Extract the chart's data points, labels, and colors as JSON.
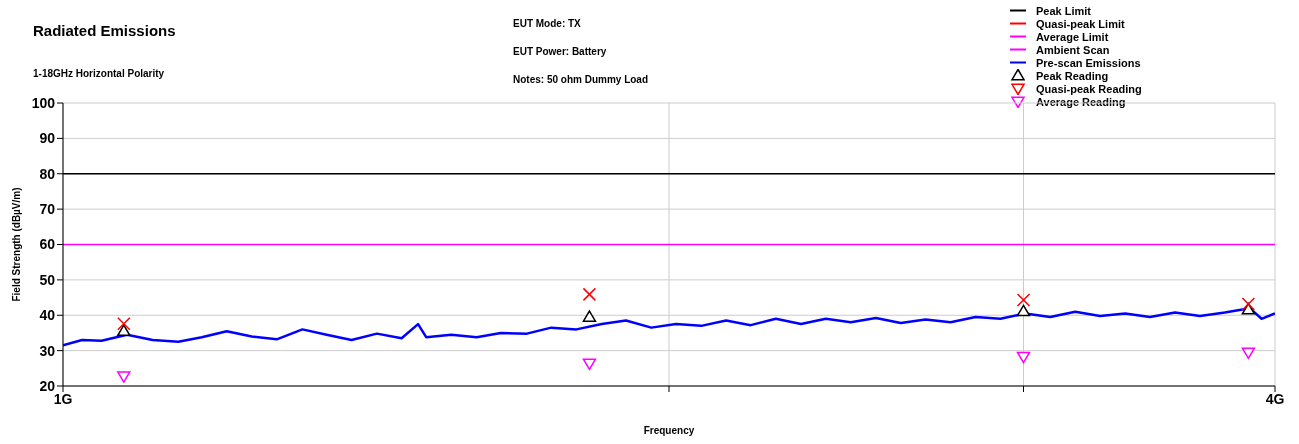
{
  "chart_data": {
    "type": "line",
    "title": "Radiated Emissions",
    "subtitle": "1-18GHz Horizontal Polarity",
    "xlabel": "Frequency",
    "ylabel": "Field Strength (dBµV/m)",
    "annotations": [
      "EUT Mode: TX",
      "EUT Power: Battery",
      "Notes: 50 ohm Dummy Load"
    ],
    "log": "x",
    "xlim": [
      1,
      4
    ],
    "xticks": [
      {
        "value": 1,
        "label": "1G"
      },
      {
        "value": 2,
        "label": null
      },
      {
        "value": 3,
        "label": null
      },
      {
        "value": 4,
        "label": "4G"
      }
    ],
    "ylim": [
      20,
      100
    ],
    "yticks": [
      20,
      30,
      40,
      50,
      60,
      70,
      80,
      90,
      100
    ],
    "grid": true,
    "legend": "top right",
    "line_style": "solid",
    "series": [
      {
        "name": "Peak Limit",
        "color": "#000000",
        "x": [
          1,
          4
        ],
        "values": [
          80,
          80
        ]
      },
      {
        "name": "Quasi-peak Limit",
        "color": "#ff0000"
      },
      {
        "name": "Average Limit",
        "color": "#ff00ff",
        "x": [
          1,
          4
        ],
        "values": [
          60,
          60
        ]
      },
      {
        "name": "Ambient Scan",
        "color": "#ff00ff"
      },
      {
        "name": "Pre-scan Emissions",
        "color": "#0000ff",
        "x": [
          1.0,
          1.022,
          1.045,
          1.076,
          1.108,
          1.141,
          1.172,
          1.206,
          1.241,
          1.277,
          1.315,
          1.352,
          1.391,
          1.432,
          1.473,
          1.501,
          1.515,
          1.559,
          1.605,
          1.65,
          1.7,
          1.748,
          1.799,
          1.852,
          1.904,
          1.96,
          2.016,
          2.075,
          2.135,
          2.196,
          2.26,
          2.326,
          2.393,
          2.462,
          2.534,
          2.607,
          2.682,
          2.76,
          2.84,
          2.922,
          3.006,
          3.093,
          3.183,
          3.275,
          3.37,
          3.467,
          3.568,
          3.671,
          3.777,
          3.886,
          3.939,
          4.0
        ],
        "values": [
          31.5,
          33.0,
          32.8,
          34.5,
          33.0,
          32.5,
          33.8,
          35.5,
          34.0,
          33.2,
          36.0,
          34.5,
          33.0,
          34.8,
          33.5,
          37.5,
          33.8,
          34.5,
          33.8,
          35.0,
          34.8,
          36.5,
          36.0,
          37.5,
          38.5,
          36.5,
          37.5,
          37.0,
          38.5,
          37.2,
          39.0,
          37.5,
          39.0,
          38.0,
          39.2,
          37.8,
          38.8,
          38.0,
          39.5,
          39.0,
          40.5,
          39.5,
          41.0,
          39.8,
          40.5,
          39.5,
          40.8,
          39.8,
          40.8,
          42.0,
          39.0,
          40.5
        ]
      },
      {
        "name": "Peak Reading",
        "type": "scatter",
        "marker": "triangle",
        "color": "#000000",
        "x": [
          1.072,
          1.826,
          3.0,
          3.88
        ],
        "values": [
          35.5,
          39.5,
          41.1,
          41.6
        ]
      },
      {
        "name": "Quasi-peak Reading",
        "type": "scatter",
        "marker": "cross",
        "color": "#ff0000",
        "x": [
          1.072,
          1.826,
          3.0,
          3.88
        ],
        "values": [
          37.6,
          45.9,
          44.3,
          43.2
        ]
      },
      {
        "name": "Average Reading",
        "type": "scatter",
        "marker": "triangle-down",
        "color": "#ff00ff",
        "x": [
          1.072,
          1.826,
          3.0,
          3.88
        ],
        "values": [
          22.8,
          26.4,
          28.3,
          29.5
        ]
      }
    ]
  }
}
